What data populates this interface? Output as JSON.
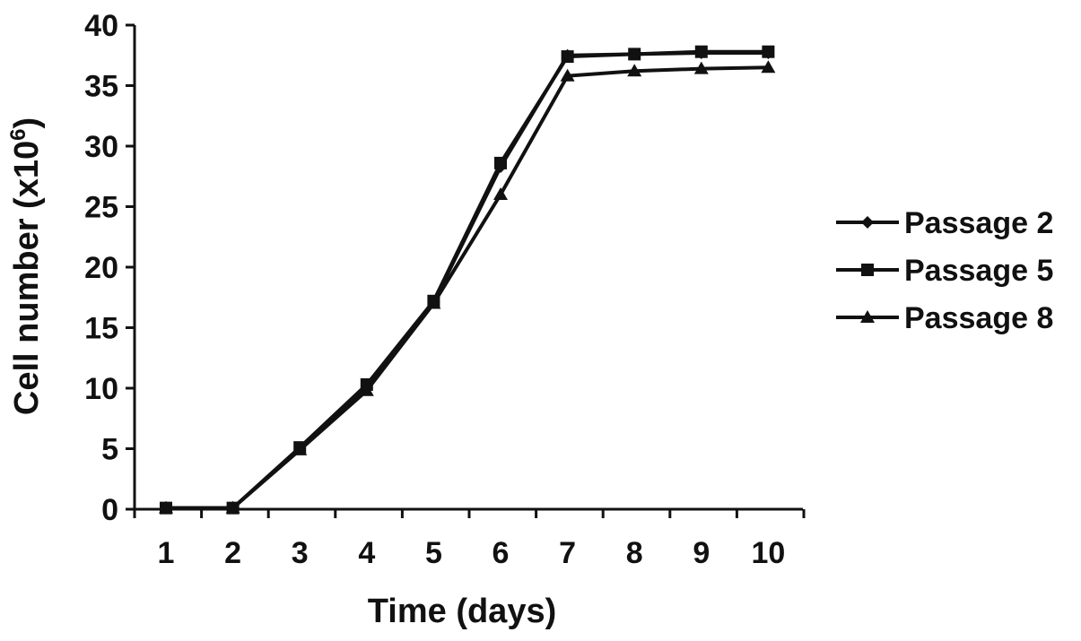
{
  "chart_data": {
    "type": "line",
    "title": "",
    "xlabel": "Time (days)",
    "ylabel_main": "Cell number (x10",
    "ylabel_sup": "6",
    "ylabel_close": ")",
    "x": [
      1,
      2,
      3,
      4,
      5,
      6,
      7,
      8,
      9,
      10
    ],
    "xlim": [
      1,
      10
    ],
    "ylim": [
      0,
      40
    ],
    "y_ticks": [
      0,
      5,
      10,
      15,
      20,
      25,
      30,
      35,
      40
    ],
    "x_tick_labels": [
      "1",
      "2",
      "3",
      "4",
      "5",
      "6",
      "7",
      "8",
      "9",
      "10"
    ],
    "grid": false,
    "legend_position": "right",
    "series": [
      {
        "name": "Passage 2",
        "marker": "diamond",
        "color": "#111111",
        "values": [
          0.1,
          0.1,
          5.0,
          10.2,
          17.1,
          28.3,
          37.5,
          37.6,
          37.7,
          37.7
        ]
      },
      {
        "name": "Passage 5",
        "marker": "square",
        "color": "#111111",
        "values": [
          0.1,
          0.1,
          5.1,
          10.3,
          17.2,
          28.6,
          37.4,
          37.6,
          37.8,
          37.8
        ]
      },
      {
        "name": "Passage 8",
        "marker": "triangle",
        "color": "#111111",
        "values": [
          0.1,
          0.1,
          4.9,
          9.8,
          17.0,
          26.0,
          35.8,
          36.2,
          36.4,
          36.5
        ]
      }
    ]
  }
}
